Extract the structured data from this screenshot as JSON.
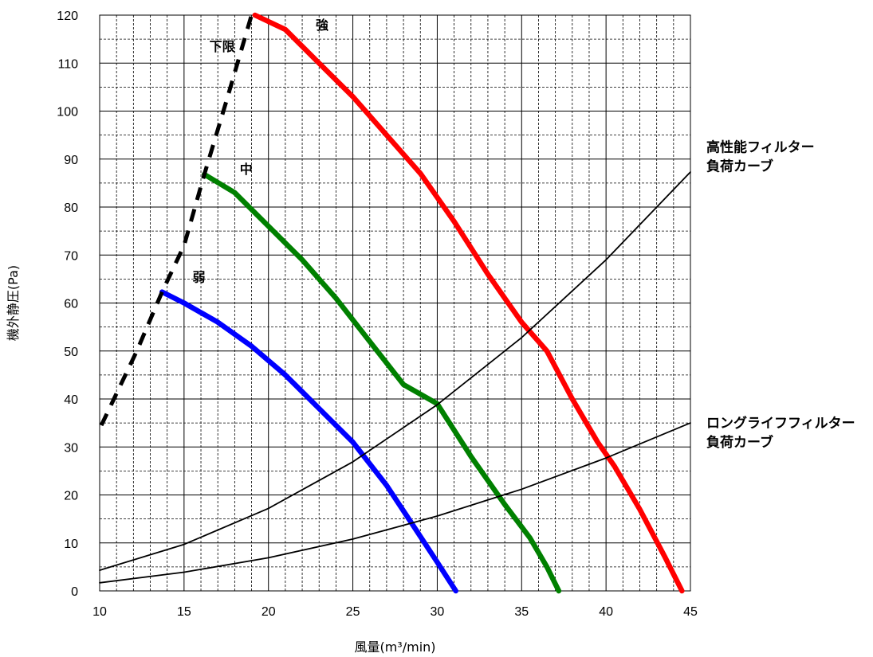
{
  "chart_data": {
    "type": "line",
    "xlabel": "風量(m³/min)",
    "ylabel": "機外静圧(Pa)",
    "xlim": [
      10,
      45
    ],
    "ylim": [
      0,
      120
    ],
    "x_ticks": [
      "10",
      "15",
      "20",
      "25",
      "30",
      "35",
      "40",
      "45"
    ],
    "y_ticks": [
      "0",
      "10",
      "20",
      "30",
      "40",
      "50",
      "60",
      "70",
      "80",
      "90",
      "100",
      "110",
      "120"
    ],
    "grid": true,
    "series": [
      {
        "name": "強",
        "color": "#ff0000",
        "style": "solid",
        "x": [
          19.2,
          21,
          23,
          25,
          27,
          29,
          31,
          33,
          35,
          36.5,
          38,
          39.5,
          40.5,
          42,
          43.5,
          44.5
        ],
        "y": [
          120,
          117,
          110,
          103,
          95,
          87,
          77,
          66,
          56,
          50,
          40,
          31,
          26,
          17,
          7,
          0
        ]
      },
      {
        "name": "中",
        "color": "#008000",
        "style": "solid",
        "x": [
          16.2,
          18,
          20,
          22,
          24,
          26,
          28,
          30,
          32,
          34,
          35.5,
          36.5,
          37.2
        ],
        "y": [
          86.8,
          83,
          76,
          69,
          61,
          52,
          43,
          39,
          28,
          18,
          11,
          5,
          0
        ]
      },
      {
        "name": "弱",
        "color": "#0000ff",
        "style": "solid",
        "x": [
          13.7,
          15,
          17,
          19,
          21,
          23,
          25,
          27,
          28.5,
          30,
          31.1
        ],
        "y": [
          62.3,
          60,
          56,
          51,
          45,
          38,
          31,
          22,
          14,
          6,
          0
        ]
      },
      {
        "name": "下限",
        "color": "#000000",
        "style": "dashed",
        "x": [
          10.1,
          12.2,
          13.7,
          15.0,
          16.2,
          17.5,
          19.0
        ],
        "y": [
          34.5,
          50,
          62.3,
          72,
          86.8,
          102,
          120
        ]
      },
      {
        "name": "高性能フィルター負荷カーブ",
        "color": "#000000",
        "style": "thin",
        "x": [
          10,
          15,
          20,
          25,
          30,
          35,
          40,
          45
        ],
        "y": [
          4.3,
          9.7,
          17.2,
          26.9,
          38.8,
          52.8,
          69.0,
          87.3
        ]
      },
      {
        "name": "ロングライフフィルター負荷カーブ",
        "color": "#000000",
        "style": "thin",
        "x": [
          10,
          15,
          20,
          25,
          30,
          35,
          40,
          45
        ],
        "y": [
          1.7,
          3.9,
          6.9,
          10.8,
          15.6,
          21.2,
          27.7,
          35.0
        ]
      }
    ],
    "annotations": [
      {
        "text": "強",
        "x": 22.8,
        "y": 117
      },
      {
        "text": "中",
        "x": 18.3,
        "y": 87
      },
      {
        "text": "弱",
        "x": 15.5,
        "y": 64.5
      },
      {
        "text": "下限",
        "x": 16.5,
        "y": 112.5
      }
    ],
    "side_labels": [
      {
        "lines": [
          "高性能フィルター",
          "負荷カーブ"
        ],
        "y": 91.5
      },
      {
        "lines": [
          "ロングライフフィルター",
          "負荷カーブ"
        ],
        "y": 34
      }
    ]
  }
}
